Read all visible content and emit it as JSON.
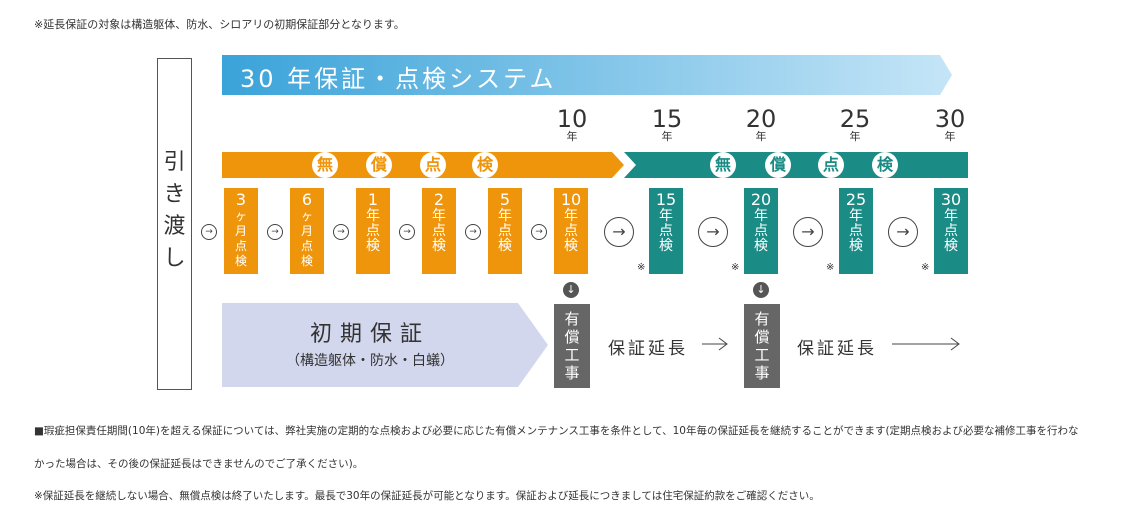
{
  "top_note": "※延長保証の対象は構造躯体、防水、シロアリの初期保証部分となります。",
  "handover_label": "引\nき\n渡\nし",
  "banner_title": "30 年保証・点検システム",
  "years": [
    {
      "n": "10",
      "u": "年"
    },
    {
      "n": "15",
      "u": "年"
    },
    {
      "n": "20",
      "u": "年"
    },
    {
      "n": "25",
      "u": "年"
    },
    {
      "n": "30",
      "u": "年"
    }
  ],
  "free_inspection_chars": [
    "無",
    "償",
    "点",
    "検"
  ],
  "inspection_boxes": [
    {
      "top": "3",
      "rest": "ヶ\n月\n点\n検"
    },
    {
      "top": "6",
      "rest": "ヶ\n月\n点\n検"
    },
    {
      "top": "1",
      "rest": "年\n点\n検"
    },
    {
      "top": "2",
      "rest": "年\n点\n検"
    },
    {
      "top": "5",
      "rest": "年\n点\n検"
    },
    {
      "top": "10",
      "rest": "年\n点\n検"
    },
    {
      "top": "15",
      "rest": "年\n点\n検"
    },
    {
      "top": "20",
      "rest": "年\n点\n検"
    },
    {
      "top": "25",
      "rest": "年\n点\n検"
    },
    {
      "top": "30",
      "rest": "年\n点\n検"
    }
  ],
  "arrow_glyph": "→",
  "down_glyph": "↓",
  "kome": "※",
  "initial_warranty": {
    "title": "初期保証",
    "sub": "（構造躯体・防水・白蟻）"
  },
  "paid_work": "有\n償\n工\n事",
  "warranty_extension": "保証延長",
  "bottom_note_1": "■瑕疵担保責任期間(10年)を超える保証については、弊社実施の定期的な点検および必要に応じた有償メンテナンス工事を条件として、10年毎の保証延長を継続することができます(定期点検および必要な補修工事を行わな",
  "bottom_note_2": "かった場合は、その後の保証延長はできませんのでご了承ください)。",
  "bottom_note_3": "※保証延長を継続しない場合、無償点検は終了いたします。最長で30年の保証延長が可能となります。保証および延長につきましては住宅保証約款をご確認ください。",
  "colors": {
    "orange": "#ef950b",
    "teal": "#1a8b85",
    "banner_start": "#3aa3d9",
    "banner_end": "#c5e5f7",
    "lavender": "#d3d7ed",
    "gray": "#666666"
  }
}
